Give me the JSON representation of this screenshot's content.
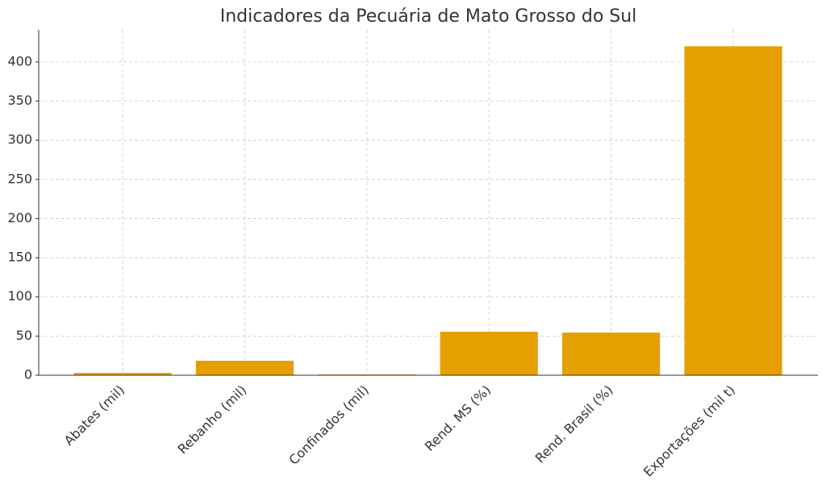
{
  "chart_data": {
    "type": "bar",
    "title": "Indicadores da Pecuária de Mato Grosso do Sul",
    "categories": [
      "Abates (mil)",
      "Rebanho (mil)",
      "Confinados (mil)",
      "Rend. MS (%)",
      "Rend. Brasil (%)",
      "Exportações (mil t)"
    ],
    "values": [
      3,
      18.5,
      1,
      55.5,
      54.5,
      420
    ],
    "color": "#e69f00",
    "ylim": [
      0,
      441
    ],
    "yticks": [
      0,
      50,
      100,
      150,
      200,
      250,
      300,
      350,
      400
    ],
    "grid": true
  }
}
